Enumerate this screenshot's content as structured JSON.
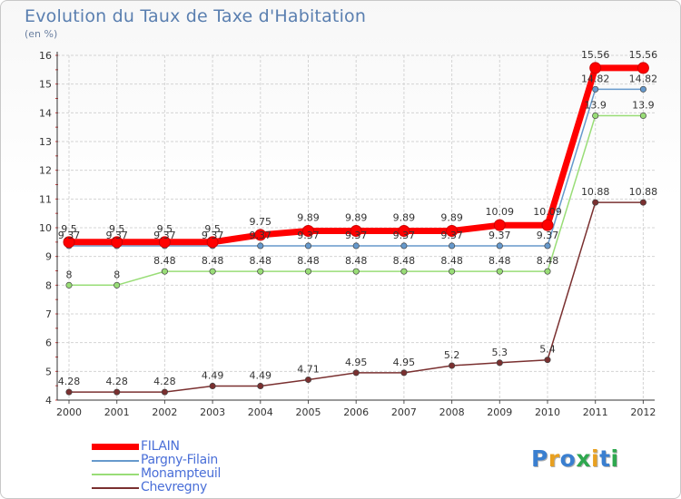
{
  "title": "Evolution du Taux de Taxe d'Habitation",
  "unit_label": "(en %)",
  "logo": {
    "text": "Proxiti",
    "letter_colors": [
      "#3a7fd0",
      "#e8a020",
      "#3a7fd0",
      "#2fa84f",
      "#e8a020",
      "#3a7fd0",
      "#2fa84f"
    ]
  },
  "chart_data": {
    "type": "line",
    "x": [
      "2000",
      "2001",
      "2002",
      "2003",
      "2004",
      "2005",
      "2006",
      "2007",
      "2008",
      "2009",
      "2010",
      "2011",
      "2012"
    ],
    "ylim": [
      4,
      16
    ],
    "yticks": [
      "4",
      "5",
      "6",
      "7",
      "8",
      "9",
      "10",
      "11",
      "12",
      "13",
      "14",
      "15",
      "16"
    ],
    "grid": true,
    "legend_position": "bottom-left",
    "series": [
      {
        "name": "FILAIN",
        "color": "#ff0000",
        "emphasis": true,
        "values": [
          9.5,
          9.5,
          9.5,
          9.5,
          9.75,
          9.89,
          9.89,
          9.89,
          9.89,
          10.09,
          10.09,
          15.56,
          15.56
        ],
        "labels": [
          "9.5",
          "9.5",
          "9.5",
          "9.5",
          "9.75",
          "9.89",
          "9.89",
          "9.89",
          "9.89",
          "10.09",
          "10.09",
          "15.56",
          "15.56"
        ]
      },
      {
        "name": "Pargny-Filain",
        "color": "#6699cc",
        "values": [
          9.37,
          9.37,
          9.37,
          9.37,
          9.37,
          9.37,
          9.37,
          9.37,
          9.37,
          9.37,
          9.37,
          14.82,
          14.82
        ],
        "labels": [
          "9.37",
          "9.37",
          "9.37",
          "9.37",
          "9.37",
          "9.37",
          "9.37",
          "9.37",
          "9.37",
          "9.37",
          "9.37",
          "14.82",
          "14.82"
        ]
      },
      {
        "name": "Monampteuil",
        "color": "#99dd77",
        "values": [
          8,
          8,
          8.48,
          8.48,
          8.48,
          8.48,
          8.48,
          8.48,
          8.48,
          8.48,
          8.48,
          13.9,
          13.9
        ],
        "labels": [
          "8",
          "8",
          "8.48",
          "8.48",
          "8.48",
          "8.48",
          "8.48",
          "8.48",
          "8.48",
          "8.48",
          "8.48",
          "13.9",
          "13.9"
        ]
      },
      {
        "name": "Chevregny",
        "color": "#7a3030",
        "values": [
          4.28,
          4.28,
          4.28,
          4.49,
          4.49,
          4.71,
          4.95,
          4.95,
          5.2,
          5.3,
          5.4,
          10.88,
          10.88
        ],
        "labels": [
          "4.28",
          "4.28",
          "4.28",
          "4.49",
          "4.49",
          "4.71",
          "4.95",
          "4.95",
          "5.2",
          "5.3",
          "5.4",
          "10.88",
          "10.88"
        ]
      }
    ]
  }
}
